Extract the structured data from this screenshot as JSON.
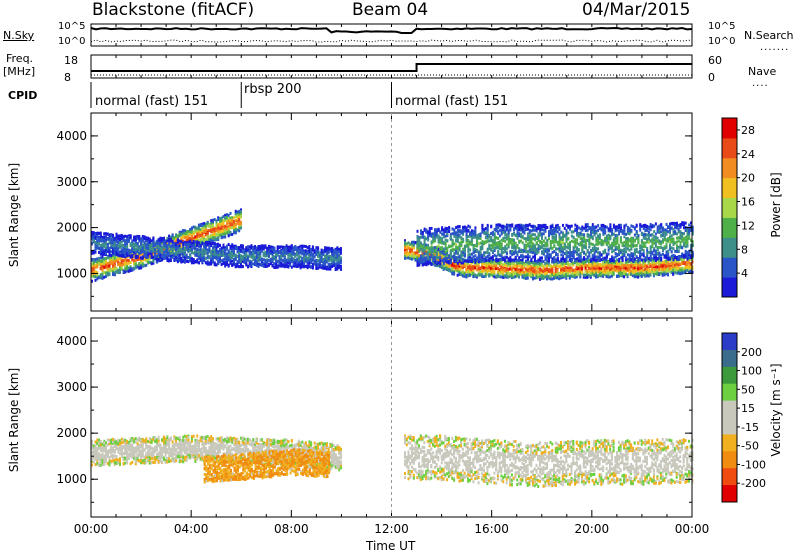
{
  "header": {
    "station": "Blackstone (fitACF)",
    "beam": "Beam 04",
    "date": "04/Mar/2015"
  },
  "aux_panels": {
    "nsky_label": "N.Sky",
    "nsky_ticks": [
      "10^5",
      "10^0"
    ],
    "nsearch_label": "N.Search",
    "nsearch_ticks": [
      "10^5",
      "10^0"
    ],
    "freq_label_1": "Freq.",
    "freq_label_2": "[MHz]",
    "freq_ticks": [
      "18",
      "8"
    ],
    "nave_label": "Nave",
    "nave_ticks": [
      "60",
      "0"
    ],
    "cpid_label": "CPID"
  },
  "cpid_segments": [
    {
      "label": "normal (fast) 151",
      "start_hour": 0,
      "end_hour": 6
    },
    {
      "label": "rbsp 200",
      "start_hour": 6,
      "end_hour": 12
    },
    {
      "label": "normal (fast) 151",
      "start_hour": 12,
      "end_hour": 24
    }
  ],
  "colors": {
    "power_scale": [
      "#1a1ad8",
      "#2a55c8",
      "#3d8f8a",
      "#4fb04a",
      "#a8d84a",
      "#f0c020",
      "#f08c20",
      "#e84a18",
      "#e00000"
    ],
    "velocity_scale": [
      "#e00000",
      "#f04c10",
      "#f08c10",
      "#f0b020",
      "#c8c8bc",
      "#c8c8bc",
      "#6cd040",
      "#3c9a3c",
      "#3c6c8c",
      "#2a3cc8"
    ]
  },
  "chart_data": [
    {
      "type": "heatmap",
      "title": "Power",
      "xlabel": "Time UT",
      "ylabel": "Slant Range [km]",
      "x_range_hours": [
        0,
        24
      ],
      "xticks": [
        "00:00",
        "04:00",
        "08:00",
        "12:00",
        "16:00",
        "20:00",
        "00:00"
      ],
      "ylim": [
        180,
        4500
      ],
      "yticks": [
        1000,
        2000,
        3000,
        4000
      ],
      "colorbar_label": "Power [dB]",
      "colorbar_ticks": [
        4,
        8,
        12,
        16,
        20,
        24,
        28
      ],
      "colorbar_range": [
        0,
        30
      ],
      "bands": [
        {
          "t": [
            0,
            1,
            2,
            3,
            4,
            5,
            6
          ],
          "center_km": [
            1100,
            1250,
            1400,
            1600,
            1800,
            2000,
            2200
          ],
          "width_km": 300,
          "level_db": 26
        },
        {
          "t": [
            0,
            2,
            4,
            6,
            8,
            10
          ],
          "center_km": [
            1700,
            1600,
            1500,
            1400,
            1400,
            1350
          ],
          "width_km": 300,
          "level_db": 8
        },
        {
          "t": [
            12.5,
            13.5,
            14.5,
            15,
            16,
            18,
            20,
            22,
            24
          ],
          "center_km": [
            1550,
            1450,
            1200,
            1150,
            1150,
            1100,
            1150,
            1150,
            1250
          ],
          "width_km": 250,
          "level_db": 27
        },
        {
          "t": [
            13,
            16,
            18,
            20,
            22,
            24
          ],
          "center_km": [
            1600,
            1700,
            1700,
            1700,
            1700,
            1750
          ],
          "width_km": 500,
          "level_db": 12
        }
      ]
    },
    {
      "type": "heatmap",
      "title": "Velocity",
      "xlabel": "Time UT",
      "ylabel": "Slant Range [km]",
      "x_range_hours": [
        0,
        24
      ],
      "xticks": [
        "00:00",
        "04:00",
        "08:00",
        "12:00",
        "16:00",
        "20:00",
        "00:00"
      ],
      "ylim": [
        180,
        4500
      ],
      "yticks": [
        1000,
        2000,
        3000,
        4000
      ],
      "colorbar_label": "Velocity [m s⁻¹]",
      "colorbar_ticks": [
        200,
        100,
        50,
        15,
        -15,
        -50,
        -100,
        -200
      ],
      "bands": [
        {
          "t": [
            0,
            2,
            4,
            6,
            8,
            10
          ],
          "center_km": [
            1600,
            1650,
            1700,
            1650,
            1600,
            1500
          ],
          "width_km": 350,
          "level": 0
        },
        {
          "t": [
            4.5,
            6,
            8,
            9.5
          ],
          "center_km": [
            1250,
            1300,
            1400,
            1350
          ],
          "width_km": 350,
          "level": -50
        },
        {
          "t": [
            12.5,
            14,
            16,
            18,
            20,
            22,
            24
          ],
          "center_km": [
            1500,
            1500,
            1400,
            1350,
            1400,
            1400,
            1450
          ],
          "width_km": 600,
          "level": 0
        }
      ]
    }
  ]
}
